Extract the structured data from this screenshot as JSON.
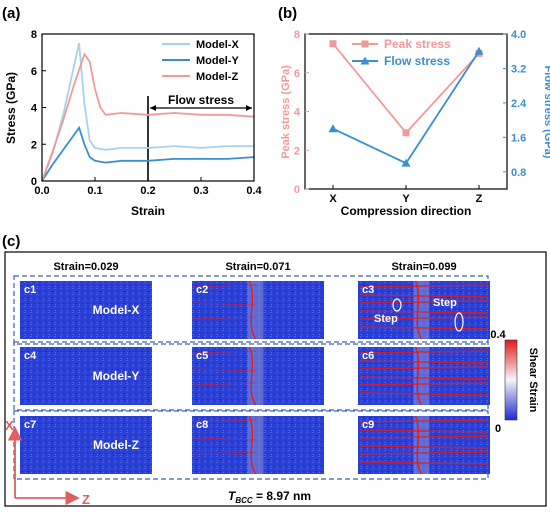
{
  "panels": {
    "a": {
      "label": "(a)"
    },
    "b": {
      "label": "(b)"
    },
    "c": {
      "label": "(c)"
    }
  },
  "chart_data": [
    {
      "type": "line",
      "xlabel": "Strain",
      "ylabel": "Stress (GPa)",
      "xlim": [
        0.0,
        0.4
      ],
      "ylim": [
        0,
        8
      ],
      "xticks": [
        "0.0",
        "0.1",
        "0.2",
        "0.3",
        "0.4"
      ],
      "yticks": [
        "0",
        "2",
        "4",
        "6",
        "8"
      ],
      "legend_position": "top-right",
      "annotation": {
        "text": "Flow stress",
        "from_strain": 0.2,
        "to_strain": 0.4
      },
      "series": [
        {
          "name": "Model-X",
          "color": "#a7d3ea",
          "x": [
            0,
            0.02,
            0.04,
            0.06,
            0.07,
            0.08,
            0.09,
            0.1,
            0.12,
            0.15,
            0.2,
            0.25,
            0.3,
            0.35,
            0.4
          ],
          "y": [
            0,
            1.5,
            3.6,
            6.2,
            7.5,
            4.2,
            2.2,
            1.8,
            1.7,
            1.8,
            1.8,
            1.9,
            1.8,
            1.9,
            1.9
          ]
        },
        {
          "name": "Model-Y",
          "color": "#3a8fd0",
          "x": [
            0,
            0.02,
            0.04,
            0.06,
            0.07,
            0.08,
            0.09,
            0.1,
            0.12,
            0.15,
            0.2,
            0.25,
            0.3,
            0.35,
            0.4
          ],
          "y": [
            0,
            0.9,
            1.7,
            2.5,
            2.9,
            2.0,
            1.3,
            1.1,
            1.0,
            1.1,
            1.1,
            1.2,
            1.2,
            1.2,
            1.3
          ]
        },
        {
          "name": "Model-Z",
          "color": "#f2999b",
          "x": [
            0,
            0.02,
            0.04,
            0.06,
            0.08,
            0.09,
            0.1,
            0.11,
            0.12,
            0.15,
            0.2,
            0.25,
            0.3,
            0.35,
            0.4
          ],
          "y": [
            0,
            1.6,
            3.3,
            5.2,
            6.9,
            6.5,
            5.0,
            4.0,
            3.6,
            3.7,
            3.6,
            3.7,
            3.6,
            3.6,
            3.5
          ]
        }
      ]
    },
    {
      "type": "line",
      "xlabel": "Compression direction",
      "ylabel": "Peak stress (GPa)",
      "y2label": "Flow stress (GPa)",
      "categories": [
        "X",
        "Y",
        "Z"
      ],
      "ylim": [
        0,
        8
      ],
      "y2lim": [
        0.4,
        4.0
      ],
      "yticks": [
        "0",
        "2",
        "4",
        "6",
        "8"
      ],
      "y2ticks": [
        "0.8",
        "1.6",
        "2.4",
        "3.2",
        "4.0"
      ],
      "legend_position": "top-right",
      "series": [
        {
          "name": "Peak stress",
          "axis": "left",
          "marker": "square",
          "color": "#f2999b",
          "values": [
            7.5,
            2.9,
            7.0
          ]
        },
        {
          "name": "Flow stress",
          "axis": "right",
          "marker": "triangle",
          "color": "#3a8fd0",
          "values": [
            1.8,
            1.0,
            3.6
          ]
        }
      ]
    }
  ],
  "panel_c": {
    "strain_headers": [
      "Strain=0.029",
      "Strain=0.071",
      "Strain=0.099"
    ],
    "rows": [
      {
        "model": "Model-X",
        "cells": [
          "c1",
          "c2",
          "c3"
        ]
      },
      {
        "model": "Model-Y",
        "cells": [
          "c4",
          "c5",
          "c6"
        ]
      },
      {
        "model": "Model-Z",
        "cells": [
          "c7",
          "c8",
          "c9"
        ]
      }
    ],
    "step_label": "Step",
    "colorbar": {
      "max": "0.4",
      "min": "0",
      "label": "Shear Strain",
      "color_high": "#e21b1b",
      "color_mid": "#f4f4f8",
      "color_low": "#1f2ccf"
    },
    "axes": {
      "vertical": "X",
      "horizontal": "Z",
      "color": "#e06060"
    },
    "tbcc": {
      "symbol": "T",
      "subscript": "BCC",
      "value": " = 8.97 nm"
    }
  }
}
